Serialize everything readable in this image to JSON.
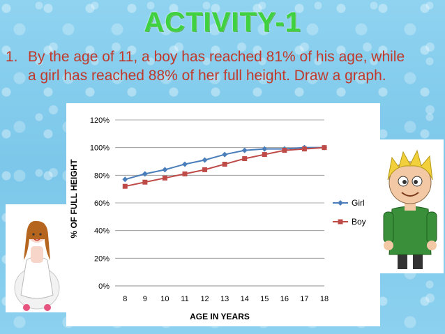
{
  "slide": {
    "title": "ACTIVITY-1",
    "question_number": "1.",
    "question_line1": "By the age of 11, a boy has reached 81% of his age, while",
    "question_line2": "a girl has reached 88% of her full height. Draw a graph."
  },
  "colors": {
    "title": "#3fd13f",
    "question": "#c0392b",
    "girl_series": "#4a7ebb",
    "boy_series": "#be4b48"
  },
  "images": {
    "girl": "cartoon-girl-in-white-dress",
    "boy": "cartoon-boy-in-green-shirt"
  },
  "chart_data": {
    "type": "line",
    "xlabel": "AGE IN YEARS",
    "ylabel": "% OF FULL HEIGHT",
    "categories": [
      "8",
      "9",
      "10",
      "11",
      "12",
      "13",
      "14",
      "15",
      "16",
      "17",
      "18"
    ],
    "ylim": [
      0,
      120
    ],
    "yticks": [
      "0%",
      "20%",
      "40%",
      "60%",
      "80%",
      "100%",
      "120%"
    ],
    "grid": true,
    "legend_position": "right",
    "series": [
      {
        "name": "Girl",
        "values": [
          77,
          81,
          84,
          88,
          91,
          95,
          98,
          99,
          99,
          100,
          100
        ]
      },
      {
        "name": "Boy",
        "values": [
          72,
          75,
          78,
          81,
          84,
          88,
          92,
          95,
          98,
          99,
          100
        ]
      }
    ]
  }
}
